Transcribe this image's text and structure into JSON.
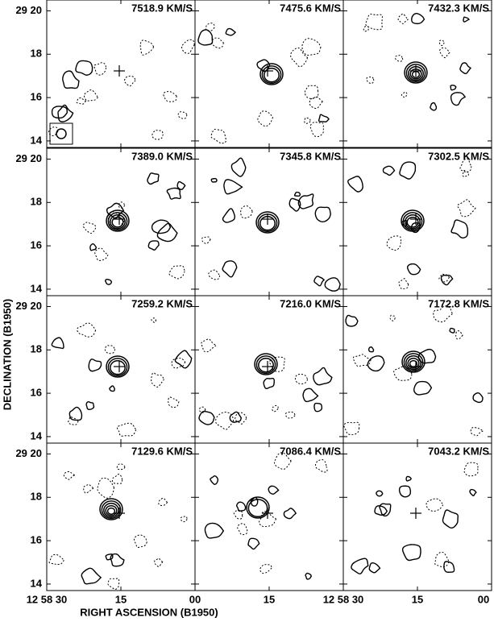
{
  "chart_data": {
    "type": "channel-map",
    "xlabel": "RIGHT ASCENSION (B1950)",
    "ylabel": "DECLINATION (B1950)",
    "xlim": [
      30,
      0
    ],
    "ylim": [
      13.7,
      20.5
    ],
    "yticks": [
      14,
      16,
      18,
      {
        "value": 20,
        "label": "29 20"
      }
    ],
    "columns": [
      {
        "xticks": [
          {
            "value": 30,
            "label": "12 58 30"
          },
          15,
          {
            "value": 0,
            "label": "00"
          }
        ]
      },
      {
        "xticks": [
          15
        ]
      },
      {
        "xticks": [
          {
            "value": 30,
            "label": "12 58 30"
          },
          15,
          {
            "value": 0,
            "label": "00"
          }
        ]
      }
    ],
    "panels": [
      "7518.9 KM/S",
      "7475.6 KM/S",
      "7432.3 KM/S",
      "7389.0 KM/S",
      "7345.8 KM/S",
      "7302.5 KM/S",
      "7259.2 KM/S",
      "7216.0 KM/S",
      "7172.8 KM/S",
      "7129.6 KM/S",
      "7086.4 KM/S",
      "7043.2 KM/S"
    ]
  }
}
